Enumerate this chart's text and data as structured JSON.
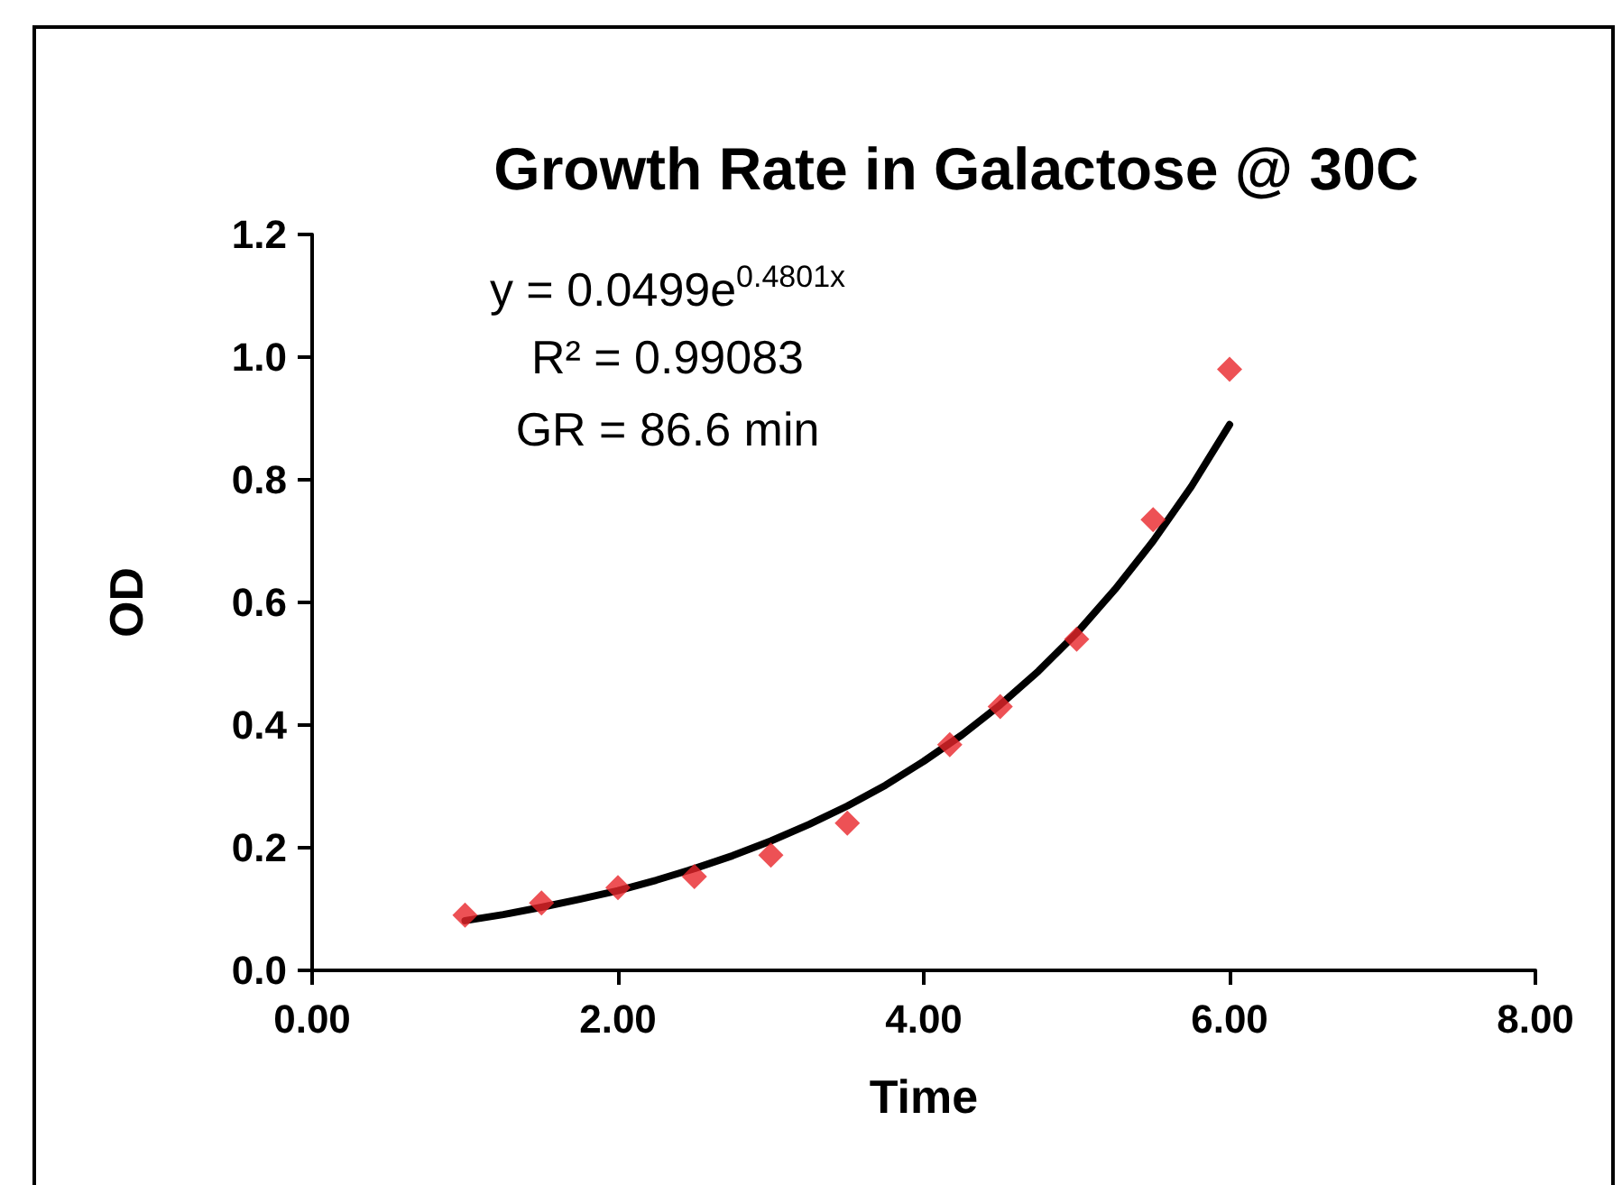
{
  "chart_data": {
    "type": "scatter",
    "title": "Growth Rate in Galactose @ 30C",
    "xlabel": "Time",
    "ylabel": "OD",
    "annotations": [
      "y = 0.0499e$^{0.4801x}$",
      "R² = 0.99083",
      "GR = 86.6 min"
    ],
    "xlim": [
      0,
      8
    ],
    "xticks": [
      {
        "value": 0,
        "label": "0.00"
      },
      {
        "value": 2,
        "label": "2.00"
      },
      {
        "value": 4,
        "label": "4.00"
      },
      {
        "value": 6,
        "label": "6.00"
      },
      {
        "value": 8,
        "label": "8.00"
      }
    ],
    "ylim": [
      0,
      1.2
    ],
    "yticks": [
      {
        "value": 0,
        "label": "0.0"
      },
      {
        "value": 0.2,
        "label": "0.2"
      },
      {
        "value": 0.4,
        "label": "0.4"
      },
      {
        "value": 0.6,
        "label": "0.6"
      },
      {
        "value": 0.8,
        "label": "0.8"
      },
      {
        "value": 1,
        "label": "1.0"
      },
      {
        "value": 1.2,
        "label": "1.2"
      }
    ],
    "grid": false,
    "series": [
      {
        "color": "#e8262a",
        "marker": "diamond",
        "x": [
          1,
          1.5,
          2,
          2.5,
          3,
          3.5,
          4.17,
          4.5,
          5,
          5.5,
          6
        ],
        "values": [
          0.09,
          0.11,
          0.135,
          0.153,
          0.188,
          0.24,
          0.368,
          0.43,
          0.54,
          0.735,
          0.98
        ]
      },
      {
        "type": "line",
        "color": "#000000",
        "marker": "none",
        "line_style": "solid",
        "x": [
          1,
          1.25,
          1.5,
          1.75,
          2,
          2.25,
          2.5,
          2.75,
          3,
          3.25,
          3.5,
          3.75,
          4,
          4.25,
          4.5,
          4.75,
          5,
          5.25,
          5.5,
          5.75,
          6
        ],
        "values": [
          0.081,
          0.091,
          0.103,
          0.116,
          0.13,
          0.147,
          0.166,
          0.187,
          0.211,
          0.238,
          0.268,
          0.302,
          0.341,
          0.384,
          0.433,
          0.488,
          0.55,
          0.621,
          0.7,
          0.789,
          0.89
        ]
      }
    ]
  }
}
